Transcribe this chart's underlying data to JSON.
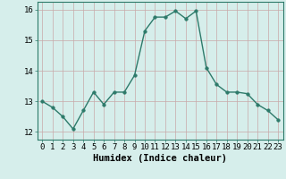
{
  "x": [
    0,
    1,
    2,
    3,
    4,
    5,
    6,
    7,
    8,
    9,
    10,
    11,
    12,
    13,
    14,
    15,
    16,
    17,
    18,
    19,
    20,
    21,
    22,
    23
  ],
  "y": [
    13.0,
    12.8,
    12.5,
    12.1,
    12.7,
    13.3,
    12.9,
    13.3,
    13.3,
    13.85,
    15.3,
    15.75,
    15.75,
    15.95,
    15.7,
    15.95,
    14.1,
    13.55,
    13.3,
    13.3,
    13.25,
    12.9,
    12.7,
    12.4
  ],
  "xlabel": "Humidex (Indice chaleur)",
  "ylim": [
    11.75,
    16.25
  ],
  "xlim": [
    -0.5,
    23.5
  ],
  "yticks": [
    12,
    13,
    14,
    15,
    16
  ],
  "xticks": [
    0,
    1,
    2,
    3,
    4,
    5,
    6,
    7,
    8,
    9,
    10,
    11,
    12,
    13,
    14,
    15,
    16,
    17,
    18,
    19,
    20,
    21,
    22,
    23
  ],
  "line_color": "#2d7a6a",
  "bg_color": "#d6eeeb",
  "grid_color": "#c8a8a8",
  "xlabel_fontsize": 7.5,
  "tick_fontsize": 6.5,
  "line_width": 1.0,
  "marker_size": 2.5
}
